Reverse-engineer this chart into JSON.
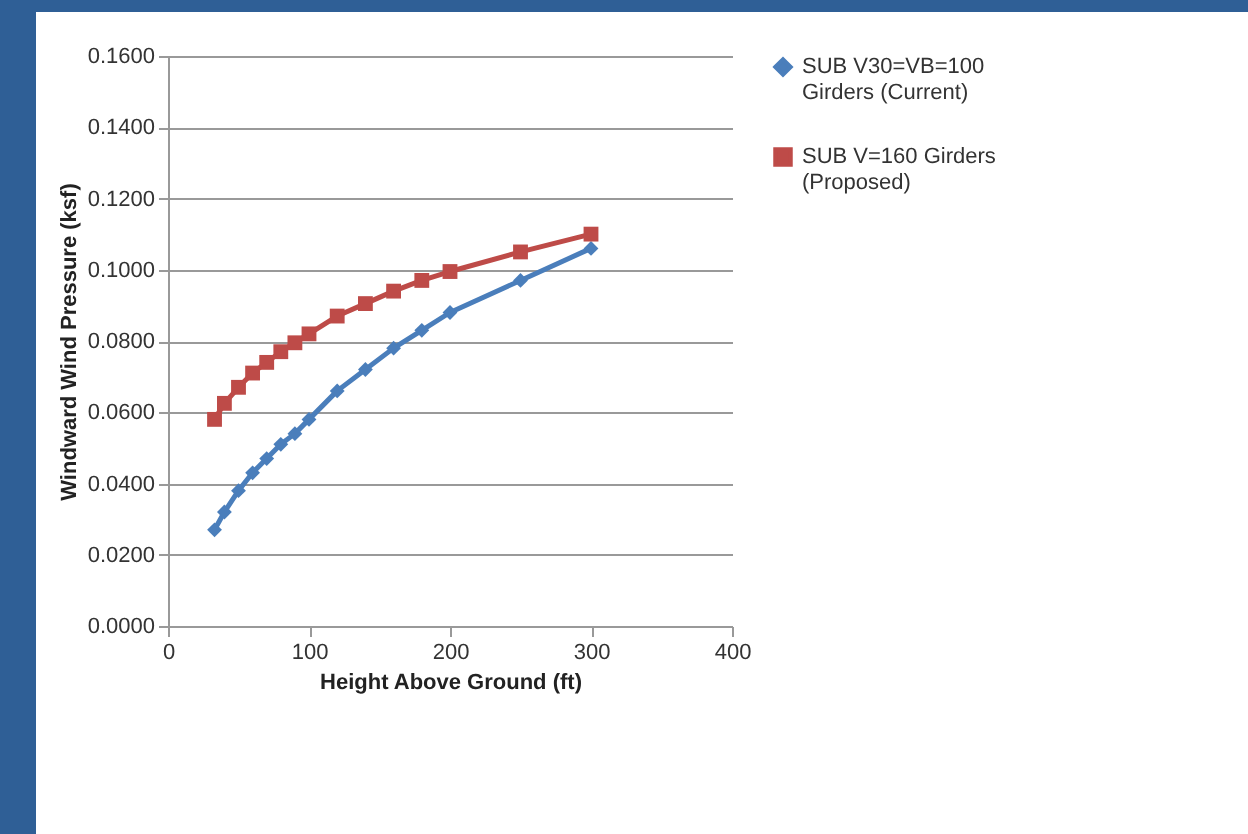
{
  "chart_data": {
    "type": "line",
    "xlabel": "Height Above Ground (ft)",
    "ylabel": "Windward Wind Pressure (ksf)",
    "x": [
      33,
      40,
      50,
      60,
      70,
      80,
      90,
      100,
      120,
      140,
      160,
      180,
      200,
      250,
      300
    ],
    "series": [
      {
        "name": "SUB V30=VB=100 Girders (Current)",
        "color": "#4a7ebb",
        "marker": "diamond",
        "values": [
          0.027,
          0.032,
          0.038,
          0.043,
          0.047,
          0.051,
          0.054,
          0.058,
          0.066,
          0.072,
          0.078,
          0.083,
          0.088,
          0.097,
          0.106
        ]
      },
      {
        "name": "SUB V=160 Girders (Proposed)",
        "color": "#be4b48",
        "marker": "square",
        "values": [
          0.058,
          0.0625,
          0.067,
          0.071,
          0.074,
          0.077,
          0.0795,
          0.082,
          0.087,
          0.0905,
          0.094,
          0.097,
          0.0995,
          0.105,
          0.11
        ]
      }
    ],
    "xlim": [
      0,
      400
    ],
    "xticks": [
      0,
      100,
      200,
      300,
      400
    ],
    "ylim": [
      0,
      0.16
    ],
    "yticks": [
      {
        "value": 0,
        "label": "0.0000"
      },
      {
        "value": 0.02,
        "label": "0.0200"
      },
      {
        "value": 0.04,
        "label": "0.0400"
      },
      {
        "value": 0.06,
        "label": "0.0600"
      },
      {
        "value": 0.08,
        "label": "0.0800"
      },
      {
        "value": 0.1,
        "label": "0.1000"
      },
      {
        "value": 0.12,
        "label": "0.1200"
      },
      {
        "value": 0.14,
        "label": "0.1400"
      },
      {
        "value": 0.16,
        "label": "0.1600"
      }
    ],
    "grid": "y",
    "legend": "right",
    "line_style": "solid"
  }
}
